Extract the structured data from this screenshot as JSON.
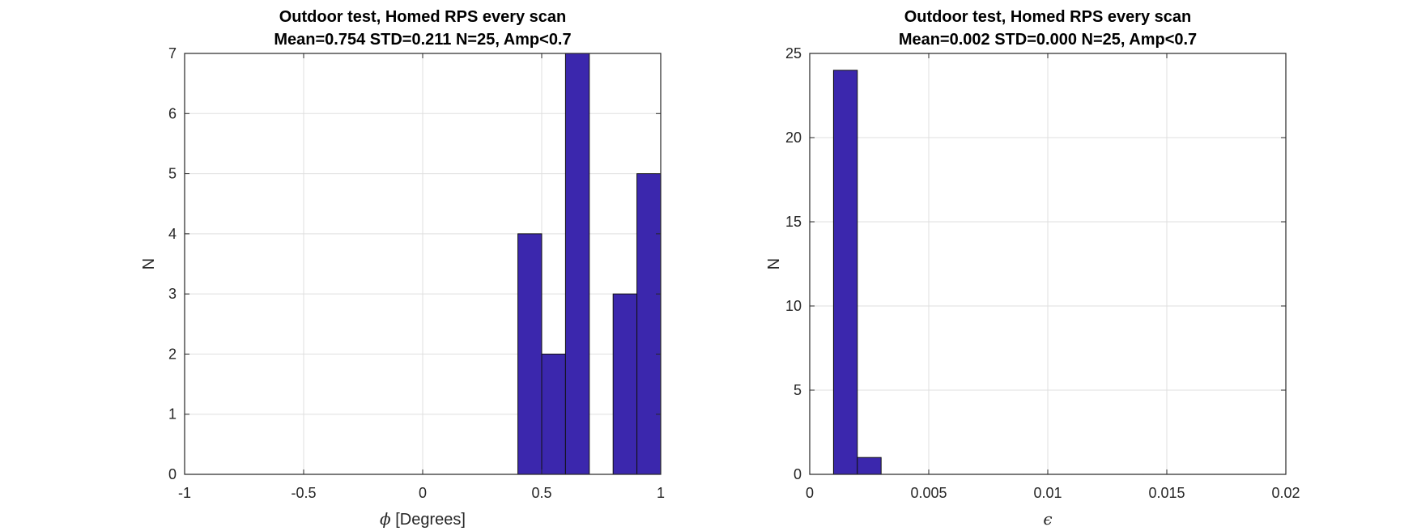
{
  "chart_data": [
    {
      "type": "bar",
      "histogram": true,
      "title": "Outdoor test, Homed RPS every scan",
      "subtitle": "Mean=0.754 STD=0.211 N=25, Amp<0.7",
      "xlabel_symbol": "ϕ",
      "xlabel": "[Degrees]",
      "ylabel": "N",
      "xlim": [
        -1,
        1
      ],
      "ylim": [
        0,
        7
      ],
      "xticks": [
        -1,
        -0.5,
        0,
        0.5,
        1
      ],
      "xtick_labels": [
        "-1",
        "-0.5",
        "0",
        "0.5",
        "1"
      ],
      "yticks": [
        0,
        1,
        2,
        3,
        4,
        5,
        6,
        7
      ],
      "ytick_labels": [
        "0",
        "1",
        "2",
        "3",
        "4",
        "5",
        "6",
        "7"
      ],
      "grid": true,
      "bar_color": "#3b27ad",
      "bin_edges": [
        -1,
        -0.9,
        -0.8,
        -0.7,
        -0.6,
        -0.5,
        -0.4,
        -0.3,
        -0.2,
        -0.1,
        0,
        0.1,
        0.2,
        0.3,
        0.4,
        0.5,
        0.6,
        0.7,
        0.8,
        0.9,
        1
      ],
      "values": [
        0,
        0,
        0,
        0,
        0,
        0,
        0,
        0,
        0,
        0,
        0,
        0,
        0,
        0,
        4,
        2,
        7,
        0,
        3,
        5
      ]
    },
    {
      "type": "bar",
      "histogram": true,
      "title": "Outdoor test, Homed RPS every scan",
      "subtitle": "Mean=0.002 STD=0.000 N=25, Amp<0.7",
      "xlabel_symbol": "ϵ",
      "xlabel": "",
      "ylabel": "N",
      "xlim": [
        0,
        0.02
      ],
      "ylim": [
        0,
        25
      ],
      "xticks": [
        0,
        0.005,
        0.01,
        0.015,
        0.02
      ],
      "xtick_labels": [
        "0",
        "0.005",
        "0.01",
        "0.015",
        "0.02"
      ],
      "yticks": [
        0,
        5,
        10,
        15,
        20,
        25
      ],
      "ytick_labels": [
        "0",
        "5",
        "10",
        "15",
        "20",
        "25"
      ],
      "grid": true,
      "bar_color": "#3b27ad",
      "bin_edges": [
        0,
        0.001,
        0.002,
        0.003,
        0.004,
        0.005,
        0.006,
        0.007,
        0.008,
        0.009,
        0.01,
        0.011,
        0.012,
        0.013,
        0.014,
        0.015,
        0.016,
        0.017,
        0.018,
        0.019,
        0.02
      ],
      "values": [
        0,
        24,
        1,
        0,
        0,
        0,
        0,
        0,
        0,
        0,
        0,
        0,
        0,
        0,
        0,
        0,
        0,
        0,
        0,
        0
      ]
    }
  ]
}
